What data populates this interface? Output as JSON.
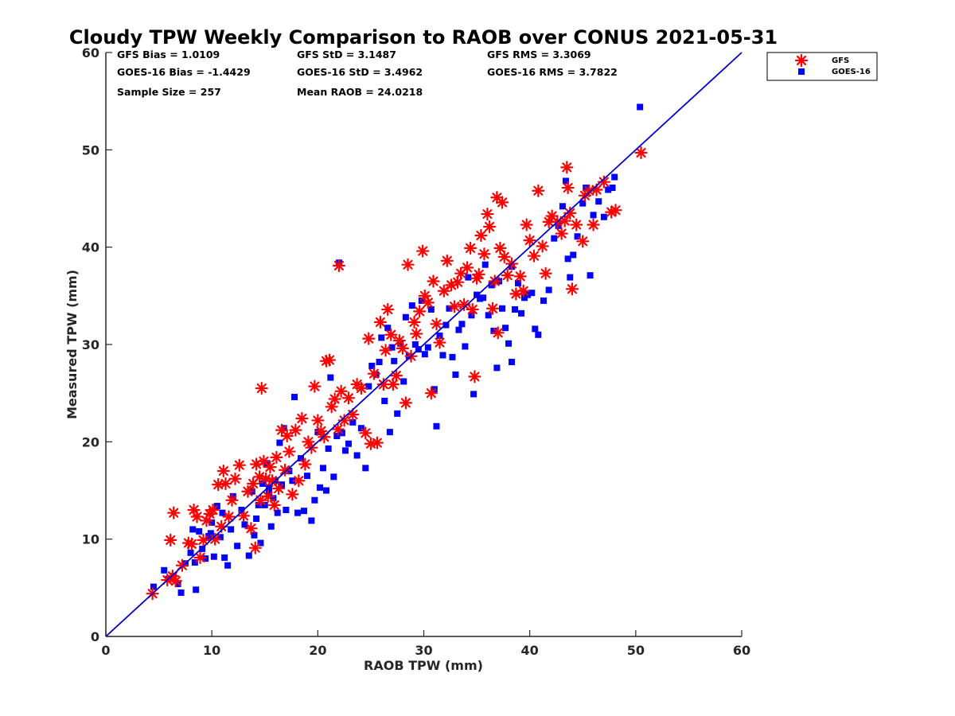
{
  "chart_data": {
    "type": "scatter",
    "title": "Cloudy TPW Weekly Comparison to RAOB over CONUS 2021-05-31",
    "xlabel": "RAOB TPW (mm)",
    "ylabel": "Measured TPW (mm)",
    "xlim": [
      0,
      60
    ],
    "ylim": [
      0,
      60
    ],
    "xticks": [
      0,
      10,
      20,
      30,
      40,
      50,
      60
    ],
    "yticks": [
      0,
      10,
      20,
      30,
      40,
      50,
      60
    ],
    "grid": false,
    "legend_position": "top-right outside",
    "stats": {
      "gfs_bias": "GFS Bias = 1.0109",
      "goes_bias": "GOES-16 Bias = -1.4429",
      "sample_size": "Sample Size = 257",
      "gfs_std": "GFS StD = 3.1487",
      "goes_std": "GOES-16 StD = 3.4962",
      "mean_raob": "Mean RAOB = 24.0218",
      "gfs_rms": "GFS RMS = 3.3069",
      "goes_rms": "GOES-16 RMS = 3.7822"
    },
    "reference_line": {
      "x": [
        0,
        60
      ],
      "y": [
        0,
        60
      ],
      "color": "#0000cc"
    },
    "series": [
      {
        "name": "GFS",
        "marker": "asterisk",
        "color": "#ff0000",
        "points": [
          [
            4.4,
            4.4
          ],
          [
            5.8,
            5.8
          ],
          [
            6.3,
            6.2
          ],
          [
            6.6,
            5.7
          ],
          [
            6.1,
            9.9
          ],
          [
            6.4,
            12.7
          ],
          [
            7.2,
            7.3
          ],
          [
            7.8,
            9.6
          ],
          [
            8.1,
            9.5
          ],
          [
            8.3,
            13.0
          ],
          [
            8.6,
            12.3
          ],
          [
            8.9,
            8.1
          ],
          [
            9.2,
            9.9
          ],
          [
            9.5,
            11.9
          ],
          [
            9.8,
            12.6
          ],
          [
            10.1,
            13.0
          ],
          [
            10.3,
            10.0
          ],
          [
            10.6,
            15.6
          ],
          [
            10.9,
            11.3
          ],
          [
            11.1,
            17.0
          ],
          [
            11.3,
            15.7
          ],
          [
            11.6,
            12.3
          ],
          [
            11.9,
            14.0
          ],
          [
            12.2,
            16.2
          ],
          [
            12.6,
            17.6
          ],
          [
            13.0,
            12.4
          ],
          [
            13.4,
            14.9
          ],
          [
            13.7,
            11.1
          ],
          [
            13.9,
            15.7
          ],
          [
            14.1,
            9.1
          ],
          [
            14.2,
            17.7
          ],
          [
            14.5,
            16.4
          ],
          [
            14.6,
            14.0
          ],
          [
            14.7,
            25.5
          ],
          [
            14.9,
            18.0
          ],
          [
            15.1,
            16.2
          ],
          [
            15.3,
            14.4
          ],
          [
            15.5,
            17.4
          ],
          [
            15.7,
            16.0
          ],
          [
            15.9,
            13.5
          ],
          [
            16.1,
            18.4
          ],
          [
            16.3,
            15.2
          ],
          [
            16.6,
            21.2
          ],
          [
            16.9,
            17.1
          ],
          [
            17.1,
            20.6
          ],
          [
            17.3,
            19.0
          ],
          [
            17.6,
            14.6
          ],
          [
            17.9,
            21.2
          ],
          [
            18.2,
            16.0
          ],
          [
            18.5,
            22.4
          ],
          [
            18.8,
            17.7
          ],
          [
            19.1,
            20.0
          ],
          [
            19.4,
            19.4
          ],
          [
            19.7,
            25.7
          ],
          [
            20.0,
            22.2
          ],
          [
            20.3,
            21.1
          ],
          [
            20.6,
            20.5
          ],
          [
            20.8,
            28.3
          ],
          [
            21.1,
            28.4
          ],
          [
            21.3,
            23.6
          ],
          [
            21.6,
            24.4
          ],
          [
            21.9,
            21.3
          ],
          [
            22.0,
            38.1
          ],
          [
            22.2,
            25.2
          ],
          [
            22.5,
            22.2
          ],
          [
            22.9,
            24.5
          ],
          [
            23.3,
            22.8
          ],
          [
            23.7,
            25.9
          ],
          [
            24.1,
            25.5
          ],
          [
            24.5,
            20.9
          ],
          [
            24.8,
            30.6
          ],
          [
            25.0,
            19.8
          ],
          [
            25.3,
            27.0
          ],
          [
            25.6,
            19.9
          ],
          [
            25.9,
            32.3
          ],
          [
            26.2,
            25.9
          ],
          [
            26.4,
            29.4
          ],
          [
            26.6,
            33.6
          ],
          [
            26.9,
            31.0
          ],
          [
            27.1,
            25.9
          ],
          [
            27.4,
            26.8
          ],
          [
            27.7,
            30.4
          ],
          [
            28.0,
            29.6
          ],
          [
            28.3,
            24.0
          ],
          [
            28.5,
            38.2
          ],
          [
            28.8,
            28.8
          ],
          [
            29.1,
            32.3
          ],
          [
            29.3,
            31.1
          ],
          [
            29.6,
            33.4
          ],
          [
            29.9,
            39.6
          ],
          [
            30.1,
            35.0
          ],
          [
            30.4,
            34.3
          ],
          [
            30.7,
            25.0
          ],
          [
            30.9,
            36.5
          ],
          [
            31.2,
            32.1
          ],
          [
            31.5,
            30.2
          ],
          [
            31.9,
            35.5
          ],
          [
            32.2,
            38.6
          ],
          [
            32.6,
            36.1
          ],
          [
            32.9,
            33.9
          ],
          [
            33.2,
            36.4
          ],
          [
            33.5,
            37.3
          ],
          [
            33.8,
            34.1
          ],
          [
            34.1,
            37.9
          ],
          [
            34.4,
            39.9
          ],
          [
            34.6,
            33.6
          ],
          [
            34.8,
            26.7
          ],
          [
            35.0,
            36.8
          ],
          [
            35.2,
            37.2
          ],
          [
            35.4,
            41.2
          ],
          [
            35.7,
            39.3
          ],
          [
            36.0,
            43.4
          ],
          [
            36.2,
            42.1
          ],
          [
            36.5,
            33.7
          ],
          [
            36.7,
            36.5
          ],
          [
            36.9,
            45.1
          ],
          [
            37.0,
            31.2
          ],
          [
            37.2,
            39.9
          ],
          [
            37.4,
            44.6
          ],
          [
            37.6,
            39.0
          ],
          [
            37.9,
            37.1
          ],
          [
            38.3,
            38.3
          ],
          [
            38.7,
            35.2
          ],
          [
            39.1,
            37.0
          ],
          [
            39.4,
            35.5
          ],
          [
            39.7,
            42.3
          ],
          [
            40.0,
            40.7
          ],
          [
            40.4,
            39.1
          ],
          [
            40.8,
            45.8
          ],
          [
            41.2,
            40.1
          ],
          [
            41.5,
            37.3
          ],
          [
            41.8,
            42.6
          ],
          [
            42.1,
            43.2
          ],
          [
            42.6,
            42.6
          ],
          [
            43.0,
            41.4
          ],
          [
            43.3,
            42.7
          ],
          [
            43.5,
            48.2
          ],
          [
            43.6,
            46.1
          ],
          [
            43.8,
            43.5
          ],
          [
            44.0,
            35.7
          ],
          [
            44.4,
            42.3
          ],
          [
            45.0,
            40.6
          ],
          [
            45.2,
            45.3
          ],
          [
            45.6,
            45.8
          ],
          [
            46.0,
            42.3
          ],
          [
            46.3,
            45.9
          ],
          [
            47.0,
            46.7
          ],
          [
            47.7,
            43.6
          ],
          [
            48.1,
            43.8
          ],
          [
            50.5,
            49.7
          ]
        ]
      },
      {
        "name": "GOES-16",
        "marker": "square",
        "color": "#0000ff",
        "points": [
          [
            4.5,
            5.1
          ],
          [
            5.5,
            6.8
          ],
          [
            5.9,
            5.9
          ],
          [
            6.4,
            6.2
          ],
          [
            6.8,
            5.4
          ],
          [
            7.1,
            4.5
          ],
          [
            7.5,
            7.5
          ],
          [
            8.0,
            8.6
          ],
          [
            8.2,
            11.0
          ],
          [
            8.4,
            7.6
          ],
          [
            8.5,
            4.8
          ],
          [
            8.8,
            10.8
          ],
          [
            9.1,
            9.0
          ],
          [
            9.4,
            8.0
          ],
          [
            9.7,
            10.3
          ],
          [
            10.0,
            11.7
          ],
          [
            10.2,
            8.2
          ],
          [
            10.5,
            13.4
          ],
          [
            10.8,
            10.2
          ],
          [
            11.0,
            12.7
          ],
          [
            11.2,
            8.1
          ],
          [
            11.5,
            7.3
          ],
          [
            11.8,
            11.0
          ],
          [
            12.0,
            14.4
          ],
          [
            12.4,
            9.3
          ],
          [
            12.8,
            13.0
          ],
          [
            13.1,
            11.5
          ],
          [
            13.5,
            8.3
          ],
          [
            13.8,
            14.9
          ],
          [
            14.0,
            10.4
          ],
          [
            14.2,
            12.1
          ],
          [
            14.4,
            13.5
          ],
          [
            14.6,
            9.6
          ],
          [
            14.8,
            15.7
          ],
          [
            15.0,
            13.5
          ],
          [
            15.2,
            17.8
          ],
          [
            15.4,
            15.3
          ],
          [
            15.6,
            11.3
          ],
          [
            15.8,
            14.2
          ],
          [
            16.0,
            16.0
          ],
          [
            16.2,
            12.7
          ],
          [
            16.4,
            19.9
          ],
          [
            16.6,
            15.6
          ],
          [
            16.8,
            21.4
          ],
          [
            17.0,
            13.0
          ],
          [
            17.3,
            17.0
          ],
          [
            17.6,
            16.0
          ],
          [
            17.8,
            24.6
          ],
          [
            18.1,
            12.7
          ],
          [
            18.4,
            18.3
          ],
          [
            18.7,
            12.9
          ],
          [
            19.0,
            16.5
          ],
          [
            19.4,
            11.9
          ],
          [
            19.7,
            14.0
          ],
          [
            20.0,
            21.0
          ],
          [
            20.2,
            15.3
          ],
          [
            20.5,
            17.3
          ],
          [
            20.8,
            15.0
          ],
          [
            21.0,
            19.3
          ],
          [
            21.2,
            26.6
          ],
          [
            21.5,
            16.4
          ],
          [
            21.8,
            20.6
          ],
          [
            22.0,
            38.4
          ],
          [
            22.3,
            20.9
          ],
          [
            22.6,
            19.1
          ],
          [
            22.9,
            19.8
          ],
          [
            23.3,
            22.0
          ],
          [
            23.7,
            18.6
          ],
          [
            24.1,
            21.4
          ],
          [
            24.5,
            17.3
          ],
          [
            24.8,
            25.7
          ],
          [
            25.1,
            27.8
          ],
          [
            25.5,
            26.9
          ],
          [
            25.8,
            28.2
          ],
          [
            26.0,
            30.7
          ],
          [
            26.3,
            24.2
          ],
          [
            26.6,
            31.7
          ],
          [
            26.8,
            21.0
          ],
          [
            27.0,
            29.7
          ],
          [
            27.2,
            28.3
          ],
          [
            27.5,
            22.9
          ],
          [
            27.8,
            30.1
          ],
          [
            28.1,
            26.2
          ],
          [
            28.3,
            32.8
          ],
          [
            28.6,
            28.8
          ],
          [
            28.9,
            34.0
          ],
          [
            29.2,
            30.0
          ],
          [
            29.5,
            29.5
          ],
          [
            29.8,
            34.5
          ],
          [
            30.1,
            29.0
          ],
          [
            30.4,
            29.7
          ],
          [
            30.7,
            33.6
          ],
          [
            31.0,
            25.4
          ],
          [
            31.2,
            21.6
          ],
          [
            31.5,
            30.9
          ],
          [
            31.8,
            28.9
          ],
          [
            32.1,
            32.0
          ],
          [
            32.4,
            33.7
          ],
          [
            32.7,
            28.7
          ],
          [
            33.0,
            26.9
          ],
          [
            33.3,
            31.5
          ],
          [
            33.6,
            32.1
          ],
          [
            33.9,
            29.8
          ],
          [
            34.2,
            36.9
          ],
          [
            34.5,
            33.0
          ],
          [
            34.7,
            24.9
          ],
          [
            35.0,
            35.1
          ],
          [
            35.3,
            34.7
          ],
          [
            35.6,
            34.8
          ],
          [
            35.8,
            38.2
          ],
          [
            36.1,
            33.0
          ],
          [
            36.4,
            36.1
          ],
          [
            36.6,
            31.4
          ],
          [
            36.9,
            27.6
          ],
          [
            37.1,
            36.5
          ],
          [
            37.4,
            33.7
          ],
          [
            37.7,
            31.7
          ],
          [
            38.0,
            30.1
          ],
          [
            38.3,
            28.2
          ],
          [
            38.6,
            33.6
          ],
          [
            38.9,
            36.3
          ],
          [
            39.2,
            33.2
          ],
          [
            39.5,
            34.8
          ],
          [
            39.8,
            35.1
          ],
          [
            40.2,
            35.3
          ],
          [
            40.5,
            31.6
          ],
          [
            40.8,
            31.0
          ],
          [
            41.3,
            34.5
          ],
          [
            41.8,
            35.6
          ],
          [
            42.3,
            40.9
          ],
          [
            42.7,
            42.2
          ],
          [
            43.1,
            44.2
          ],
          [
            43.4,
            46.8
          ],
          [
            43.6,
            38.8
          ],
          [
            43.8,
            36.9
          ],
          [
            44.1,
            39.2
          ],
          [
            44.5,
            41.1
          ],
          [
            45.0,
            44.5
          ],
          [
            45.3,
            46.1
          ],
          [
            45.7,
            37.1
          ],
          [
            46.0,
            43.3
          ],
          [
            46.5,
            44.7
          ],
          [
            47.0,
            43.1
          ],
          [
            47.4,
            45.9
          ],
          [
            47.8,
            46.1
          ],
          [
            48.0,
            47.2
          ],
          [
            50.4,
            54.4
          ],
          [
            38.3,
            38.0
          ],
          [
            15.4,
            14.7
          ],
          [
            9.9,
            10.6
          ]
        ]
      }
    ]
  }
}
